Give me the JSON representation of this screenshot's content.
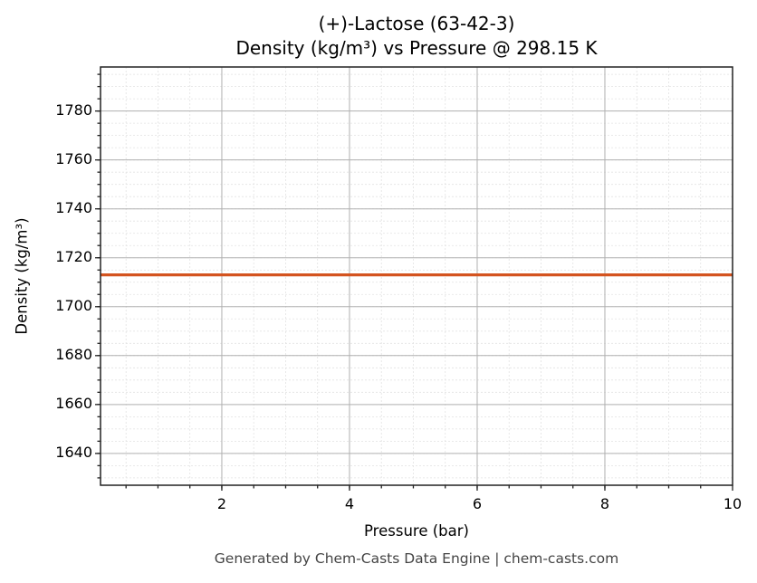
{
  "chart_data": {
    "type": "line",
    "title": "(+)-Lactose (63-42-3)",
    "subtitle": "Density (kg/m³) vs Pressure @ 298.15 K",
    "xlabel": "Pressure (bar)",
    "ylabel": "Density (kg/m³)",
    "xlim": [
      0.1,
      10
    ],
    "ylim": [
      1627,
      1798
    ],
    "x_ticks": [
      2,
      4,
      6,
      8,
      10
    ],
    "y_ticks": [
      1640,
      1660,
      1680,
      1700,
      1720,
      1740,
      1760,
      1780
    ],
    "grid": true,
    "minor_grid": true,
    "legend": null,
    "series": [
      {
        "name": "Density",
        "color": "#d45420",
        "x": [
          0.1,
          1,
          2,
          3,
          4,
          5,
          6,
          7,
          8,
          9,
          10
        ],
        "values": [
          1713,
          1713,
          1713,
          1713,
          1713,
          1713,
          1713,
          1713,
          1713,
          1713,
          1713
        ]
      }
    ]
  },
  "labels": {
    "title_line1": "(+)-Lactose (63-42-3)",
    "title_line2": "Density (kg/m³) vs Pressure @ 298.15 K",
    "xlabel": "Pressure (bar)",
    "ylabel": "Density (kg/m³)",
    "footer": "Generated by Chem-Casts Data Engine | chem-casts.com",
    "yticks": [
      "1640",
      "1660",
      "1680",
      "1700",
      "1720",
      "1740",
      "1760",
      "1780"
    ],
    "xticks": [
      "2",
      "4",
      "6",
      "8",
      "10"
    ]
  }
}
